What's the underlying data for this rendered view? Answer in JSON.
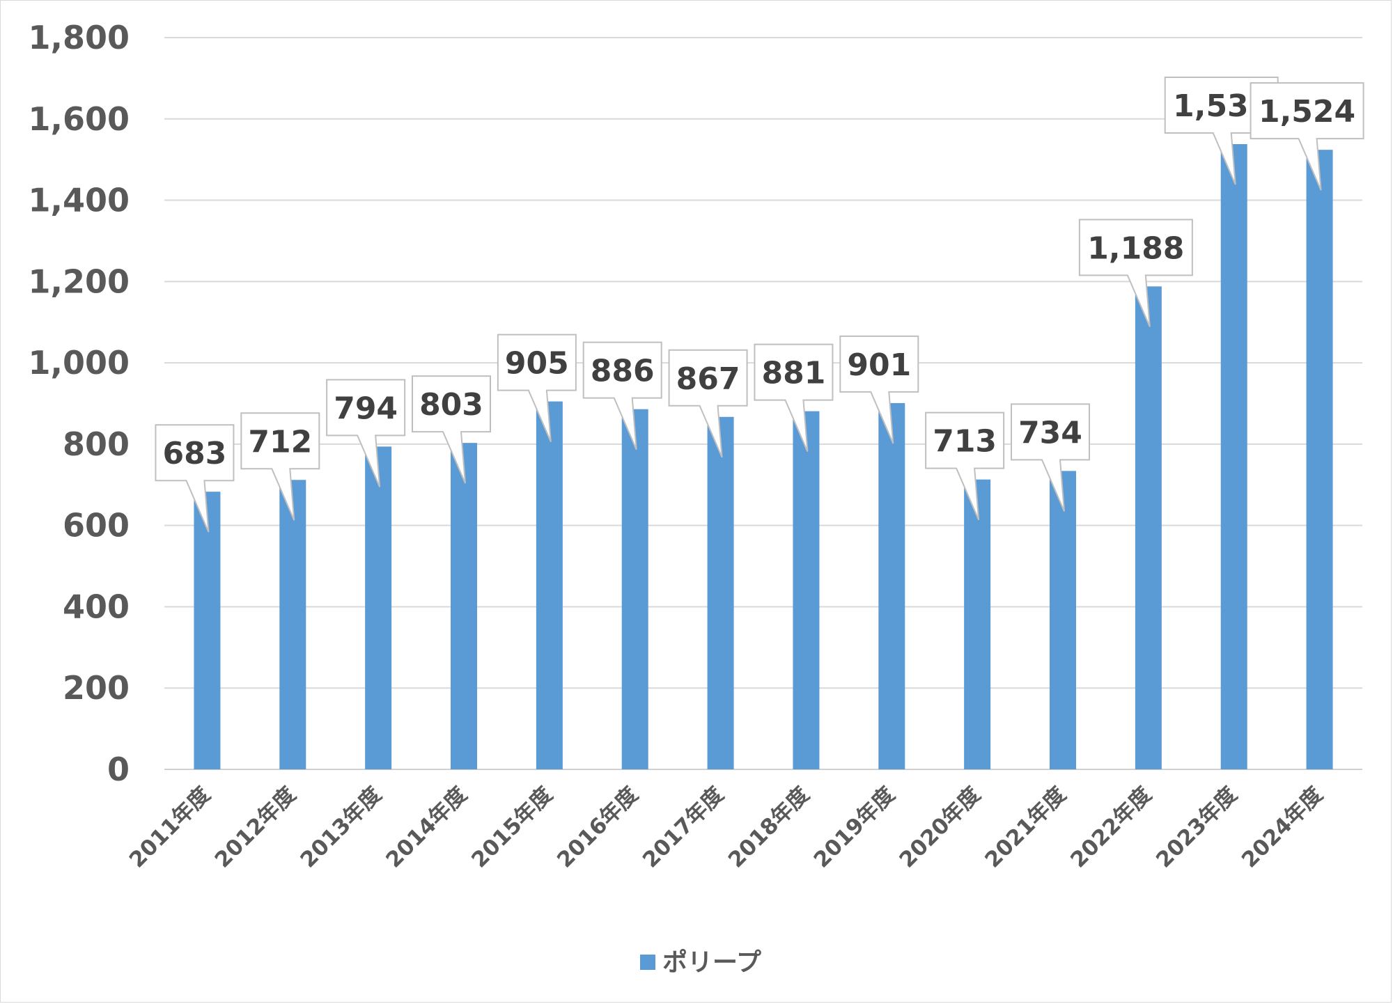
{
  "chart_data": {
    "type": "bar",
    "title": "",
    "xlabel": "",
    "ylabel": "",
    "ylim": [
      0,
      1800
    ],
    "yticks": [
      0,
      200,
      400,
      600,
      800,
      1000,
      1200,
      1400,
      1600,
      1800
    ],
    "ytick_labels": [
      "0",
      "200",
      "400",
      "600",
      "800",
      "1,000",
      "1,200",
      "1,400",
      "1,600",
      "1,800"
    ],
    "categories": [
      "2011年度",
      "2012年度",
      "2013年度",
      "2014年度",
      "2015年度",
      "2016年度",
      "2017年度",
      "2018年度",
      "2019年度",
      "2020年度",
      "2021年度",
      "2022年度",
      "2023年度",
      "2024年度"
    ],
    "series": [
      {
        "name": "ポリープ",
        "color": "#5b9bd5",
        "values": [
          683,
          712,
          794,
          803,
          905,
          886,
          867,
          881,
          901,
          713,
          734,
          1188,
          1538,
          1524
        ],
        "data_labels": [
          "683",
          "712",
          "794",
          "803",
          "905",
          "886",
          "867",
          "881",
          "901",
          "713",
          "734",
          "1,188",
          "1,538",
          "1,524"
        ]
      }
    ],
    "grid": true,
    "legend_position": "bottom",
    "data_label_style": "callout"
  }
}
